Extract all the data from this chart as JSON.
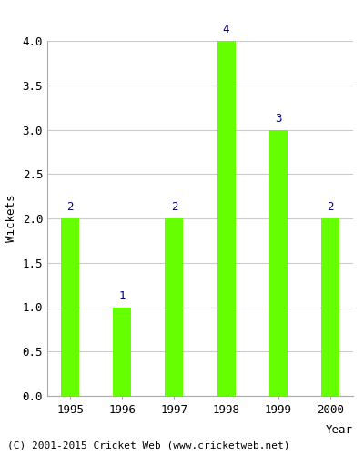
{
  "years": [
    "1995",
    "1996",
    "1997",
    "1998",
    "1999",
    "2000"
  ],
  "values": [
    2,
    1,
    2,
    4,
    3,
    2
  ],
  "bar_color": "#66ff00",
  "bar_edge_color": "#66ff00",
  "label_color": "#000080",
  "xlabel": "Year",
  "ylabel": "Wickets",
  "ylim": [
    0,
    4.0
  ],
  "yticks": [
    0.0,
    0.5,
    1.0,
    1.5,
    2.0,
    2.5,
    3.0,
    3.5,
    4.0
  ],
  "footer": "(C) 2001-2015 Cricket Web (www.cricketweb.net)",
  "grid_color": "#cccccc",
  "label_fontsize": 9,
  "axis_fontsize": 9,
  "footer_fontsize": 8,
  "bar_width": 0.35
}
